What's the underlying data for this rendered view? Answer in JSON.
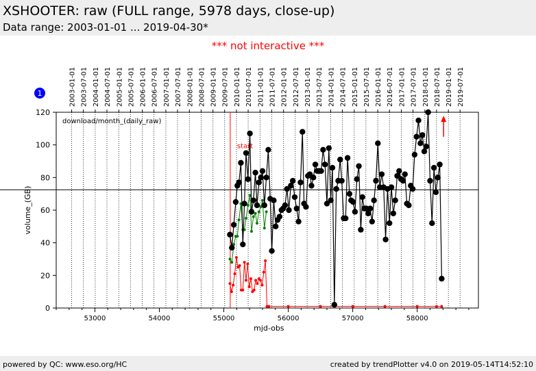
{
  "header": {
    "title": "XSHOOTER: raw (FULL range, 5978 days, close-up)",
    "subtitle": "Data range: 2003-01-01 ... 2019-04-30*"
  },
  "notice": "*** not interactive ***",
  "badge": "1",
  "footer": {
    "left": "powered by QC: www.eso.org/HC",
    "right": "created by trendPlotter v4.0 on 2019-05-14T14:52:10"
  },
  "colors": {
    "series_total": "#000000",
    "series_green": "#008000",
    "series_red": "#ff0000",
    "badge": "#0000ff",
    "notice": "#ff0000"
  },
  "chart_data": {
    "type": "line",
    "plot_label": "download/month_(daily_raw)",
    "xlabel": "mjd-obs",
    "ylabel": "volume_(GB)",
    "xlim": [
      52400,
      58950
    ],
    "ylim": [
      0,
      120
    ],
    "x_ticks": [
      53000,
      54000,
      55000,
      56000,
      57000,
      58000
    ],
    "y_ticks": [
      0,
      20,
      40,
      60,
      80,
      100,
      120
    ],
    "grid": "vertical dotted lines at the start of each half-year",
    "date_ticks": [
      {
        "label": "2003-01-01",
        "mjd": 52640
      },
      {
        "label": "2003-07-01",
        "mjd": 52821
      },
      {
        "label": "2004-01-01",
        "mjd": 53005
      },
      {
        "label": "2004-07-01",
        "mjd": 53187
      },
      {
        "label": "2005-01-01",
        "mjd": 53371
      },
      {
        "label": "2005-07-01",
        "mjd": 53552
      },
      {
        "label": "2006-01-01",
        "mjd": 53736
      },
      {
        "label": "2006-07-01",
        "mjd": 53917
      },
      {
        "label": "2007-01-01",
        "mjd": 54101
      },
      {
        "label": "2007-07-01",
        "mjd": 54282
      },
      {
        "label": "2008-01-01",
        "mjd": 54466
      },
      {
        "label": "2008-07-01",
        "mjd": 54648
      },
      {
        "label": "2009-01-01",
        "mjd": 54832
      },
      {
        "label": "2009-07-01",
        "mjd": 55013
      },
      {
        "label": "2010-01-01",
        "mjd": 55197
      },
      {
        "label": "2010-07-01",
        "mjd": 55378
      },
      {
        "label": "2011-01-01",
        "mjd": 55562
      },
      {
        "label": "2011-07-01",
        "mjd": 55743
      },
      {
        "label": "2012-01-01",
        "mjd": 55927
      },
      {
        "label": "2012-07-01",
        "mjd": 56109
      },
      {
        "label": "2013-01-01",
        "mjd": 56293
      },
      {
        "label": "2013-07-01",
        "mjd": 56474
      },
      {
        "label": "2014-01-01",
        "mjd": 56658
      },
      {
        "label": "2014-07-01",
        "mjd": 56839
      },
      {
        "label": "2015-01-01",
        "mjd": 57023
      },
      {
        "label": "2015-07-01",
        "mjd": 57204
      },
      {
        "label": "2016-01-01",
        "mjd": 57388
      },
      {
        "label": "2016-07-01",
        "mjd": 57570
      },
      {
        "label": "2017-01-01",
        "mjd": 57754
      },
      {
        "label": "2017-07-01",
        "mjd": 57935
      },
      {
        "label": "2018-01-01",
        "mjd": 58119
      },
      {
        "label": "2018-07-01",
        "mjd": 58300
      },
      {
        "label": "2019-01-01",
        "mjd": 58484
      },
      {
        "label": "2019-07-01",
        "mjd": 58665
      }
    ],
    "reference_line_y": 72.5,
    "markers": [
      {
        "label": "start",
        "x": 55100,
        "color": "#ff0000"
      }
    ],
    "arrow": {
      "x": 58410,
      "y_from": 105,
      "y_to": 117,
      "color": "#ff0000"
    },
    "series": [
      {
        "color": "#000000",
        "style": "line+large-markers",
        "points": [
          [
            55095,
            45
          ],
          [
            55125,
            37
          ],
          [
            55155,
            51
          ],
          [
            55185,
            65
          ],
          [
            55210,
            75
          ],
          [
            55235,
            77
          ],
          [
            55265,
            89
          ],
          [
            55295,
            39
          ],
          [
            55320,
            64
          ],
          [
            55345,
            95
          ],
          [
            55375,
            79
          ],
          [
            55405,
            107
          ],
          [
            55430,
            59
          ],
          [
            55460,
            66
          ],
          [
            55490,
            83
          ],
          [
            55515,
            63
          ],
          [
            55545,
            77
          ],
          [
            55575,
            80
          ],
          [
            55600,
            84
          ],
          [
            55630,
            63
          ],
          [
            55660,
            80
          ],
          [
            55690,
            97
          ],
          [
            55720,
            67
          ],
          [
            55745,
            35
          ],
          [
            55775,
            66
          ],
          [
            55805,
            50
          ],
          [
            55835,
            54
          ],
          [
            55865,
            56
          ],
          [
            55895,
            60
          ],
          [
            55920,
            61
          ],
          [
            55950,
            63
          ],
          [
            55980,
            73
          ],
          [
            56010,
            60
          ],
          [
            56040,
            75
          ],
          [
            56070,
            78
          ],
          [
            56100,
            68
          ],
          [
            56130,
            61
          ],
          [
            56160,
            53
          ],
          [
            56190,
            77
          ],
          [
            56220,
            108
          ],
          [
            56245,
            64
          ],
          [
            56275,
            62
          ],
          [
            56305,
            81
          ],
          [
            56335,
            82
          ],
          [
            56360,
            75
          ],
          [
            56390,
            80
          ],
          [
            56420,
            88
          ],
          [
            56450,
            84
          ],
          [
            56480,
            84
          ],
          [
            56510,
            84
          ],
          [
            56540,
            97
          ],
          [
            56570,
            88
          ],
          [
            56600,
            64
          ],
          [
            56630,
            98
          ],
          [
            56660,
            66
          ],
          [
            56685,
            86
          ],
          [
            56715,
            2
          ],
          [
            56745,
            73
          ],
          [
            56775,
            78
          ],
          [
            56805,
            91
          ],
          [
            56830,
            78
          ],
          [
            56860,
            55
          ],
          [
            56890,
            55
          ],
          [
            56920,
            92
          ],
          [
            56950,
            70
          ],
          [
            56975,
            66
          ],
          [
            57005,
            65
          ],
          [
            57035,
            59
          ],
          [
            57065,
            79
          ],
          [
            57095,
            87
          ],
          [
            57125,
            48
          ],
          [
            57150,
            68
          ],
          [
            57180,
            61
          ],
          [
            57210,
            61
          ],
          [
            57240,
            58
          ],
          [
            57270,
            61
          ],
          [
            57300,
            53
          ],
          [
            57330,
            66
          ],
          [
            57360,
            78
          ],
          [
            57390,
            101
          ],
          [
            57420,
            74
          ],
          [
            57450,
            82
          ],
          [
            57480,
            74
          ],
          [
            57510,
            42
          ],
          [
            57540,
            73
          ],
          [
            57570,
            52
          ],
          [
            57600,
            74
          ],
          [
            57630,
            58
          ],
          [
            57660,
            66
          ],
          [
            57690,
            81
          ],
          [
            57720,
            84
          ],
          [
            57750,
            79
          ],
          [
            57780,
            78
          ],
          [
            57810,
            82
          ],
          [
            57840,
            64
          ],
          [
            57870,
            63
          ],
          [
            57900,
            75
          ],
          [
            57930,
            73
          ],
          [
            57960,
            94
          ],
          [
            57990,
            105
          ],
          [
            58020,
            115
          ],
          [
            58050,
            101
          ],
          [
            58080,
            106
          ],
          [
            58110,
            96
          ],
          [
            58140,
            99
          ],
          [
            58170,
            120
          ],
          [
            58200,
            78
          ],
          [
            58230,
            52
          ],
          [
            58260,
            86
          ],
          [
            58290,
            71
          ],
          [
            58320,
            80
          ],
          [
            58350,
            88
          ],
          [
            58380,
            18
          ]
        ]
      },
      {
        "color": "#008000",
        "style": "line+small-markers",
        "points": [
          [
            55095,
            30
          ],
          [
            55125,
            28
          ],
          [
            55155,
            39
          ],
          [
            55185,
            44
          ],
          [
            55210,
            44
          ],
          [
            55235,
            54
          ],
          [
            55265,
            64
          ],
          [
            55295,
            48
          ],
          [
            55320,
            48
          ],
          [
            55345,
            55
          ],
          [
            55375,
            63
          ],
          [
            55405,
            69
          ],
          [
            55430,
            47
          ],
          [
            55460,
            56
          ],
          [
            55490,
            58
          ],
          [
            55515,
            52
          ],
          [
            55545,
            59
          ],
          [
            55575,
            62
          ],
          [
            55600,
            66
          ],
          [
            55630,
            49
          ],
          [
            55660,
            59
          ]
        ]
      },
      {
        "color": "#ff0000",
        "style": "line+small-markers",
        "points": [
          [
            55095,
            15
          ],
          [
            55120,
            10
          ],
          [
            55145,
            14
          ],
          [
            55170,
            21
          ],
          [
            55195,
            31
          ],
          [
            55220,
            25
          ],
          [
            55245,
            26
          ],
          [
            55270,
            11
          ],
          [
            55295,
            11
          ],
          [
            55320,
            28
          ],
          [
            55345,
            17
          ],
          [
            55370,
            27
          ],
          [
            55395,
            13
          ],
          [
            55420,
            18
          ],
          [
            55445,
            10
          ],
          [
            55470,
            11
          ],
          [
            55495,
            17
          ],
          [
            55520,
            15
          ],
          [
            55545,
            18
          ],
          [
            55570,
            17
          ],
          [
            55595,
            14
          ],
          [
            55620,
            22
          ],
          [
            55645,
            29
          ],
          [
            55670,
            1
          ],
          [
            55700,
            1
          ],
          [
            56000,
            1
          ],
          [
            56500,
            1
          ],
          [
            57000,
            1
          ],
          [
            57500,
            1
          ],
          [
            58000,
            1
          ],
          [
            58300,
            1
          ],
          [
            58380,
            1
          ]
        ]
      }
    ]
  }
}
